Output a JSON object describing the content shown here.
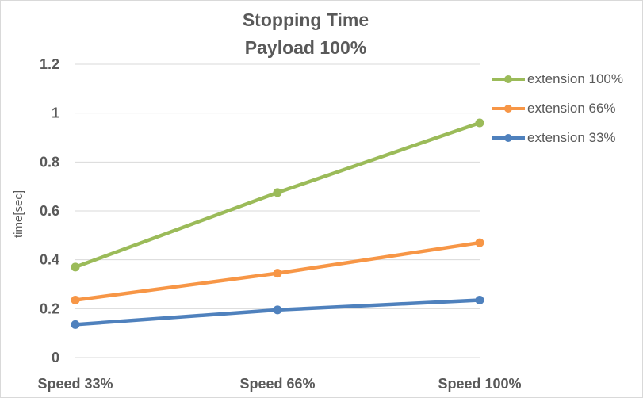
{
  "chart_data": {
    "type": "line",
    "title": [
      "Stopping Time",
      "Payload 100%"
    ],
    "xlabel": "",
    "ylabel": "time[sec]",
    "categories": [
      "Speed 33%",
      "Speed 66%",
      "Speed 100%"
    ],
    "ylim": [
      0,
      1.2
    ],
    "yticks": [
      "0",
      "0.2",
      "0.4",
      "0.6",
      "0.8",
      "1",
      "1.2"
    ],
    "grid": true,
    "legend_position": "right",
    "series": [
      {
        "name": "extension 100%",
        "color": "#9bbb59",
        "values": [
          0.37,
          0.675,
          0.96
        ]
      },
      {
        "name": "extension 66%",
        "color": "#f79646",
        "values": [
          0.235,
          0.345,
          0.47
        ]
      },
      {
        "name": "extension 33%",
        "color": "#4f81bd",
        "values": [
          0.135,
          0.195,
          0.235
        ]
      }
    ]
  }
}
